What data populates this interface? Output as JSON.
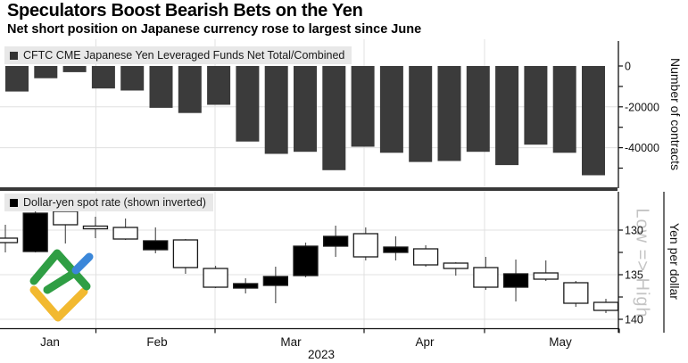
{
  "header": {
    "title": "Speculators Boost Bearish Bets on the Yen",
    "subtitle": "Net short position on Japanese currency rose to largest since June"
  },
  "top_panel": {
    "legend": "CFTC CME Japanese Yen Leveraged Funds Net Total/Combined",
    "y_axis_label": "Number of contracts"
  },
  "bottom_panel": {
    "legend": "Dollar-yen spot rate (shown inverted)",
    "y_axis_label": "Yen per dollar",
    "direction_label": "Low => High"
  },
  "x_axis": {
    "months": [
      "Jan",
      "Feb",
      "Mar",
      "Apr",
      "May"
    ],
    "year": "2023"
  },
  "colors": {
    "bar": "#3b3b3b",
    "separator": "#383838",
    "grid": "#e0e0e0",
    "axis": "#111111",
    "wick": "#555555",
    "legend_bg": "#e8e8e8",
    "logo_green": "#2f9e44",
    "logo_blue": "#3b87d9",
    "logo_yellow": "#f2b930"
  },
  "chart_data": [
    {
      "type": "bar",
      "title": "CFTC CME Japanese Yen Leveraged Funds Net Total/Combined",
      "ylabel": "Number of contracts",
      "ylim": [
        -56000,
        0
      ],
      "yticks": [
        0,
        -20000,
        -40000
      ],
      "x_range": "weekly, Jan 2023 - May 2023",
      "values": [
        -12500,
        -6000,
        -3000,
        -11000,
        -12000,
        -20500,
        -23000,
        -19000,
        -37000,
        -43000,
        -42000,
        -51000,
        -39500,
        -42500,
        -47000,
        -46500,
        -42000,
        -48500,
        -38500,
        -42500,
        -53500
      ]
    },
    {
      "type": "candlestick",
      "title": "Dollar-yen spot rate (shown inverted)",
      "ylabel": "Yen per dollar",
      "axis_note": "inverted axis: low values at top",
      "ylim": [
        127.5,
        140.5
      ],
      "yticks": [
        130,
        135,
        140
      ],
      "x_range": "weekly, Jan 2023 - May 2023",
      "candles": [
        {
          "wick_min": 129.4,
          "wick_max": 132.5,
          "body_min": 130.9,
          "body_max": 131.4,
          "fill": "white"
        },
        {
          "wick_min": 127.8,
          "wick_max": 132.5,
          "body_min": 128.1,
          "body_max": 132.4,
          "fill": "black"
        },
        {
          "wick_min": 127.9,
          "wick_max": 131.5,
          "body_min": 127.9,
          "body_max": 129.4,
          "fill": "white"
        },
        {
          "wick_min": 128.5,
          "wick_max": 130.9,
          "body_min": 129.55,
          "body_max": 129.85,
          "fill": "white"
        },
        {
          "wick_min": 128.7,
          "wick_max": 131.1,
          "body_min": 129.7,
          "body_max": 131.0,
          "fill": "white"
        },
        {
          "wick_min": 129.7,
          "wick_max": 132.6,
          "body_min": 131.2,
          "body_max": 132.2,
          "fill": "black"
        },
        {
          "wick_min": 131.0,
          "wick_max": 134.9,
          "body_min": 131.1,
          "body_max": 134.2,
          "fill": "white"
        },
        {
          "wick_min": 134.0,
          "wick_max": 136.5,
          "body_min": 134.3,
          "body_max": 136.4,
          "fill": "white"
        },
        {
          "wick_min": 135.4,
          "wick_max": 137.1,
          "body_min": 136.0,
          "body_max": 136.5,
          "fill": "black"
        },
        {
          "wick_min": 134.1,
          "wick_max": 138.2,
          "body_min": 135.2,
          "body_max": 136.2,
          "fill": "black"
        },
        {
          "wick_min": 131.4,
          "wick_max": 135.3,
          "body_min": 131.8,
          "body_max": 135.1,
          "fill": "black"
        },
        {
          "wick_min": 129.5,
          "wick_max": 133.0,
          "body_min": 130.7,
          "body_max": 131.8,
          "fill": "black"
        },
        {
          "wick_min": 129.7,
          "wick_max": 133.4,
          "body_min": 130.4,
          "body_max": 133.0,
          "fill": "white"
        },
        {
          "wick_min": 130.7,
          "wick_max": 133.4,
          "body_min": 131.9,
          "body_max": 132.5,
          "fill": "black"
        },
        {
          "wick_min": 131.7,
          "wick_max": 134.1,
          "body_min": 132.1,
          "body_max": 133.9,
          "fill": "white"
        },
        {
          "wick_min": 133.6,
          "wick_max": 135.1,
          "body_min": 133.7,
          "body_max": 134.3,
          "fill": "white"
        },
        {
          "wick_min": 133.0,
          "wick_max": 136.7,
          "body_min": 134.2,
          "body_max": 136.4,
          "fill": "white"
        },
        {
          "wick_min": 133.3,
          "wick_max": 138.0,
          "body_min": 134.9,
          "body_max": 136.4,
          "fill": "black"
        },
        {
          "wick_min": 133.4,
          "wick_max": 135.7,
          "body_min": 134.8,
          "body_max": 135.5,
          "fill": "white"
        },
        {
          "wick_min": 135.7,
          "wick_max": 138.6,
          "body_min": 135.9,
          "body_max": 138.2,
          "fill": "white"
        },
        {
          "wick_min": 137.7,
          "wick_max": 139.3,
          "body_min": 138.1,
          "body_max": 139.0,
          "fill": "white"
        }
      ]
    }
  ]
}
